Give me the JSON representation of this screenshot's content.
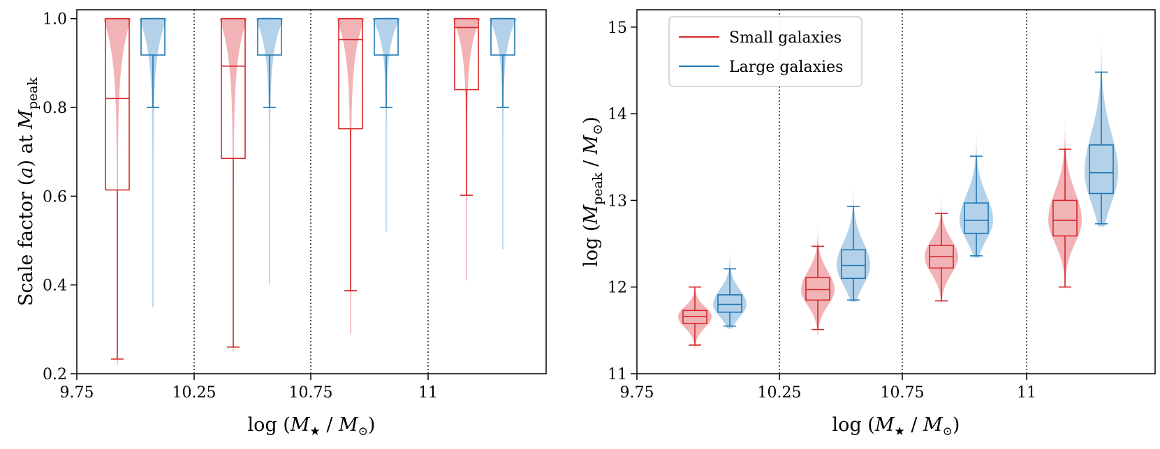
{
  "colors": {
    "small": "#d62728",
    "small_fill": "#f2b3b6",
    "large": "#1f77b4",
    "large_fill": "#b3d1e8"
  },
  "legend": {
    "entries": [
      {
        "key": "small",
        "label": "Small galaxies"
      },
      {
        "key": "large",
        "label": "Large galaxies"
      }
    ],
    "location": "upper-left"
  },
  "chart_data": [
    {
      "type": "boxplot+violin",
      "ylabel": {
        "pre": "Scale factor (",
        "italic": "a",
        "mid": ") at ",
        "m": "M",
        "sub": "peak"
      },
      "xlabel": {
        "pre": "log (",
        "m1": "M",
        "s1": "★",
        "mid": " / ",
        "m2": "M",
        "s2": "⊙",
        "post": ")"
      },
      "ylim": [
        0.2,
        1.02
      ],
      "yticks": [
        0.2,
        0.4,
        0.6,
        0.8,
        1.0
      ],
      "ytick_labels": [
        "0.2",
        "0.4",
        "0.6",
        "0.8",
        "1.0"
      ],
      "x_tick_labels": [
        "9.75",
        "10.25",
        "10.75",
        "11"
      ],
      "groups": [
        {
          "small": {
            "whislo": 0.233,
            "q1": 0.614,
            "med": 0.82,
            "q3": 1.0,
            "whishi": 1.0,
            "violin_min": 0.22
          },
          "large": {
            "whislo": 0.8,
            "q1": 0.918,
            "med": 1.0,
            "q3": 1.0,
            "whishi": 1.0,
            "violin_min": 0.35
          }
        },
        {
          "small": {
            "whislo": 0.26,
            "q1": 0.685,
            "med": 0.893,
            "q3": 1.0,
            "whishi": 1.0,
            "violin_min": 0.25
          },
          "large": {
            "whislo": 0.8,
            "q1": 0.918,
            "med": 1.0,
            "q3": 1.0,
            "whishi": 1.0,
            "violin_min": 0.4
          }
        },
        {
          "small": {
            "whislo": 0.387,
            "q1": 0.752,
            "med": 0.953,
            "q3": 1.0,
            "whishi": 1.0,
            "violin_min": 0.29
          },
          "large": {
            "whislo": 0.8,
            "q1": 0.918,
            "med": 1.0,
            "q3": 1.0,
            "whishi": 1.0,
            "violin_min": 0.52
          }
        },
        {
          "small": {
            "whislo": 0.602,
            "q1": 0.84,
            "med": 0.98,
            "q3": 1.0,
            "whishi": 1.0,
            "violin_min": 0.41
          },
          "large": {
            "whislo": 0.8,
            "q1": 0.918,
            "med": 1.0,
            "q3": 1.0,
            "whishi": 1.0,
            "violin_min": 0.48
          }
        }
      ]
    },
    {
      "type": "boxplot+violin",
      "ylabel": {
        "pre": "log (",
        "m": "M",
        "sub": "peak",
        "mid": " / ",
        "m2": "M",
        "s2": "⊙",
        "post": ")"
      },
      "xlabel": {
        "pre": "log (",
        "m1": "M",
        "s1": "★",
        "mid": " / ",
        "m2": "M",
        "s2": "⊙",
        "post": ")"
      },
      "ylim": [
        11.0,
        15.2
      ],
      "yticks": [
        11,
        12,
        13,
        14,
        15
      ],
      "ytick_labels": [
        "11",
        "12",
        "13",
        "14",
        "15"
      ],
      "x_tick_labels": [
        "9.75",
        "10.25",
        "10.75",
        "11"
      ],
      "groups": [
        {
          "small": {
            "whislo": 11.33,
            "q1": 11.58,
            "med": 11.66,
            "q3": 11.73,
            "whishi": 12.0,
            "violin_min": 11.28,
            "violin_max": 12.4
          },
          "large": {
            "whislo": 11.55,
            "q1": 11.71,
            "med": 11.8,
            "q3": 11.91,
            "whishi": 12.21,
            "violin_min": 11.52,
            "violin_max": 12.75
          }
        },
        {
          "small": {
            "whislo": 11.51,
            "q1": 11.85,
            "med": 11.97,
            "q3": 12.11,
            "whishi": 12.47,
            "violin_min": 11.45,
            "violin_max": 13.3
          },
          "large": {
            "whislo": 11.85,
            "q1": 12.1,
            "med": 12.25,
            "q3": 12.43,
            "whishi": 12.93,
            "violin_min": 11.83,
            "violin_max": 13.75
          }
        },
        {
          "small": {
            "whislo": 11.84,
            "q1": 12.22,
            "med": 12.35,
            "q3": 12.48,
            "whishi": 12.85,
            "violin_min": 11.82,
            "violin_max": 13.55
          },
          "large": {
            "whislo": 12.36,
            "q1": 12.62,
            "med": 12.77,
            "q3": 12.97,
            "whishi": 13.51,
            "violin_min": 12.34,
            "violin_max": 14.25
          }
        },
        {
          "small": {
            "whislo": 12.0,
            "q1": 12.59,
            "med": 12.77,
            "q3": 13.0,
            "whishi": 13.59,
            "violin_min": 11.98,
            "violin_max": 14.25
          },
          "large": {
            "whislo": 12.73,
            "q1": 13.08,
            "med": 13.32,
            "q3": 13.64,
            "whishi": 14.48,
            "violin_min": 12.7,
            "violin_max": 15.2
          }
        }
      ]
    }
  ]
}
